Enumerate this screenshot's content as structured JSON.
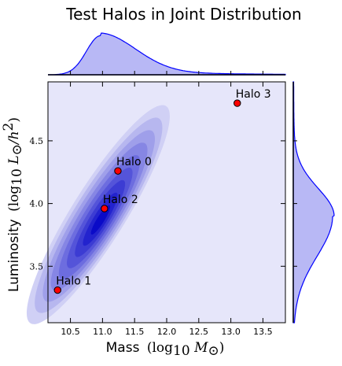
{
  "chart_data": {
    "type": "scatter",
    "title": "Test Halos in Joint Distribution",
    "xlabel": "Mass",
    "xlabel_math": "(log",
    "xlabel_math_sub": "10",
    "xlabel_math_tail": " M",
    "xlabel_math_sub2": "⊙",
    "xlabel_math_close": ")",
    "ylabel": "Luminosity",
    "ylabel_math": "(log",
    "ylabel_math_sub": "10",
    "ylabel_math_tail": " L",
    "ylabel_math_sub2": "⊙",
    "ylabel_math_tail2": "/h",
    "ylabel_math_sup": "2",
    "ylabel_math_close": ")",
    "xlim": [
      10.15,
      13.85
    ],
    "ylim": [
      3.05,
      4.97
    ],
    "xticks": [
      "10.5",
      "11.0",
      "11.5",
      "12.0",
      "12.5",
      "13.0",
      "13.5"
    ],
    "xtick_values": [
      10.5,
      11.0,
      11.5,
      12.0,
      12.5,
      13.0,
      13.5
    ],
    "yticks": [
      "3.5",
      "4.0",
      "4.5"
    ],
    "ytick_values": [
      3.5,
      4.0,
      4.5
    ],
    "points": [
      {
        "label": "Halo 0",
        "x": 11.24,
        "y": 4.26
      },
      {
        "label": "Halo 1",
        "x": 10.3,
        "y": 3.31
      },
      {
        "label": "Halo 2",
        "x": 11.03,
        "y": 3.96
      },
      {
        "label": "Halo 3",
        "x": 13.1,
        "y": 4.8
      }
    ],
    "kde": {
      "center_x": 10.97,
      "center_y": 3.87,
      "sd_major": 0.42,
      "sd_minor": 0.085,
      "angle_deg": 58
    },
    "marginal_x": {
      "peak": 10.97,
      "shape": "right-skewed"
    },
    "marginal_y": {
      "peak": 3.9,
      "shape": "left-skewed"
    },
    "colors": {
      "background": "#e6e6fa",
      "kde_dark": "#0000cc",
      "kde_light": "#d0d0f5",
      "marginal_fill": "#b8b8f5",
      "marginal_line": "#0000ff",
      "point": "#ff0000"
    },
    "grid": false
  }
}
